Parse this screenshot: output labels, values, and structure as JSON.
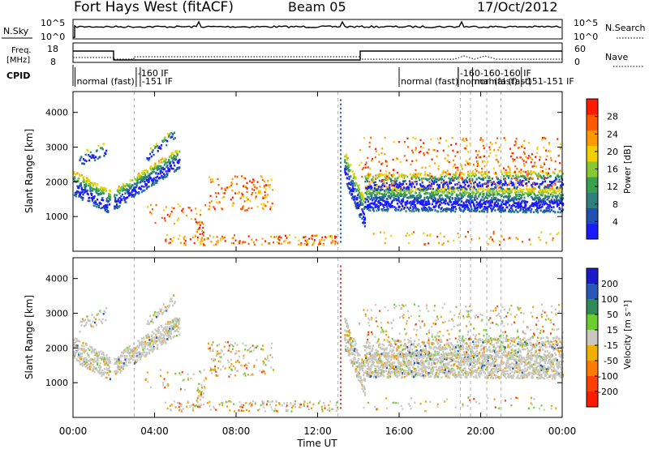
{
  "header": {
    "station": "Fort Hays West (fitACF)",
    "beam": "Beam 05",
    "date": "17/Oct/2012"
  },
  "noise_panel": {
    "left_label": "N.Sky",
    "left_ticks": [
      "10^5",
      "10^0"
    ],
    "right_label": "N.Search",
    "right_ticks": [
      "10^5",
      "10^0"
    ]
  },
  "freq_panel": {
    "left_label_line1": "Freq.",
    "left_label_line2": "[MHz]",
    "left_ticks": [
      "18",
      "8"
    ],
    "right_label": "Nave",
    "right_ticks": [
      "60",
      "0"
    ]
  },
  "cpid": {
    "label": "CPID",
    "annotations": [
      {
        "text": "normal (fast)",
        "t": 0.1
      },
      {
        "text": "-160 IF",
        "t": 3.1,
        "raised": true
      },
      {
        "text": "-151 IF",
        "t": 3.3
      },
      {
        "text": "normal (fast)",
        "t": 16.0
      },
      {
        "text": "-160-160-160 IF",
        "t": 18.9,
        "raised": true
      },
      {
        "text": "normal (fast)",
        "t": 18.9
      },
      {
        "text": "normal (fast)",
        "t": 19.6
      },
      {
        "text": "-151-151 IF",
        "t": 22.0
      }
    ]
  },
  "chart_data": [
    {
      "type": "heatmap",
      "name": "power",
      "xlabel": "",
      "ylabel": "Slant Range [km]",
      "ylim": [
        0,
        4600
      ],
      "xlim_hours": [
        0,
        24
      ],
      "yticks": [
        "1000",
        "2000",
        "3000",
        "4000"
      ],
      "colorbar": {
        "label": "Power [dB]",
        "ticks": [
          "4",
          "8",
          "12",
          "16",
          "20",
          "24",
          "28"
        ],
        "colors": [
          "#1a1aff",
          "#2050b0",
          "#2f7f7f",
          "#3aa050",
          "#88c830",
          "#f0d000",
          "#ff9a00",
          "#ff5a00",
          "#ff1a00"
        ]
      },
      "features": [
        {
          "desc": "echo band",
          "t_start": 0.0,
          "t_end": 1.8,
          "range_start": 1900,
          "range_end": 1300
        },
        {
          "desc": "echo band",
          "t_start": 2.0,
          "t_end": 5.0,
          "range_start": 1400,
          "range_end": 2400
        },
        {
          "desc": "echo band",
          "t_start": 13.3,
          "t_end": 24.0,
          "range_start": 1300,
          "range_end": 1400
        }
      ]
    },
    {
      "type": "heatmap",
      "name": "velocity",
      "xlabel": "Time UT",
      "ylabel": "Slant Range [km]",
      "ylim": [
        0,
        4600
      ],
      "xlim_hours": [
        0,
        24
      ],
      "x_tick_labels": [
        "00:00",
        "04:00",
        "08:00",
        "12:00",
        "16:00",
        "20:00",
        "00:00"
      ],
      "yticks": [
        "1000",
        "2000",
        "3000",
        "4000"
      ],
      "colorbar": {
        "label": "Velocity [m s⁻¹]",
        "ticks": [
          "200",
          "100",
          "50",
          "15",
          "-15",
          "-50",
          "-100",
          "-200"
        ],
        "colors": [
          "#1a1ac8",
          "#2a58b8",
          "#2f8a5a",
          "#6ccc30",
          "#c8c8c0",
          "#f0b000",
          "#ff7a00",
          "#ff4000",
          "#ff1a00"
        ]
      }
    }
  ]
}
